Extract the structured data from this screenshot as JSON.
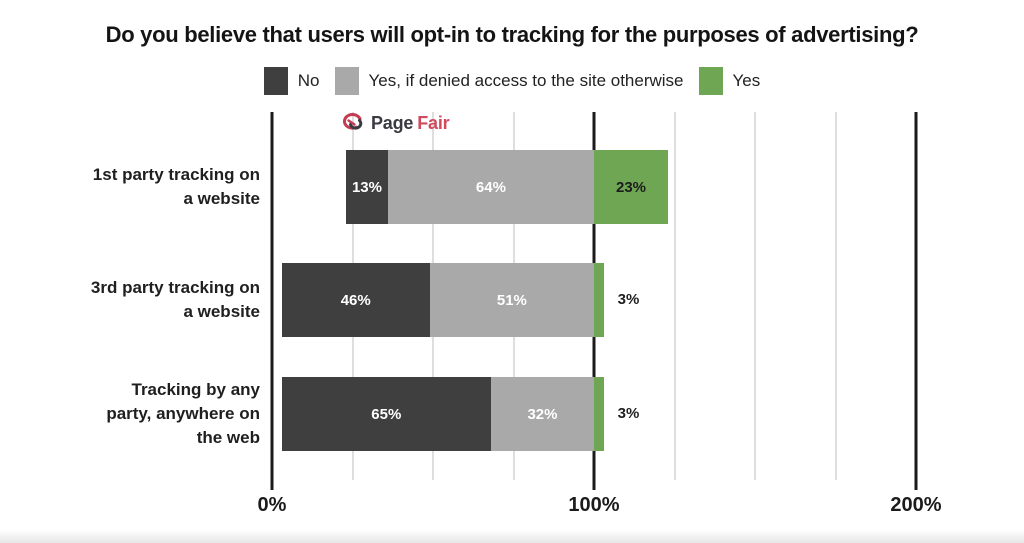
{
  "watermark": {
    "brand_dark": "Page",
    "brand_red": "Fair",
    "color_dark": "#3a3a42",
    "color_red": "#d04a5e"
  },
  "colors": {
    "grid_minor": "#dedede",
    "grid_major": "#1b1b1b",
    "text": "#1f1f1f",
    "background": "#ffffff"
  },
  "chart_data": {
    "type": "bar",
    "orientation": "horizontal",
    "variant": "diverging-stacked",
    "title": "Do you believe that users will opt-in to tracking for the purposes of advertising?",
    "categories": [
      "1st party tracking on\na website",
      "3rd party tracking on\na website",
      "Tracking by any\nparty, anywhere on\nthe web"
    ],
    "series": [
      {
        "name": "No",
        "color": "#3f3f3f",
        "label_color": "#ffffff",
        "values": [
          13,
          46,
          65
        ]
      },
      {
        "name": "Yes, if denied access to the site otherwise",
        "color": "#a9a9a9",
        "label_color": "#ffffff",
        "values": [
          64,
          51,
          32
        ]
      },
      {
        "name": "Yes",
        "color": "#6fa654",
        "label_color": "#1d1d1d",
        "values": [
          23,
          3,
          3
        ]
      }
    ],
    "pivot_percent": 100,
    "value_suffix": "%",
    "xlim": [
      0,
      200
    ],
    "x_ticks_minor": [
      25,
      50,
      75,
      125,
      150,
      175
    ],
    "x_ticks_major": [
      0,
      100,
      200
    ],
    "x_tick_labels": [
      "0%",
      "100%",
      "200%"
    ],
    "legend_position": "top",
    "grid": true,
    "outside_label_threshold": 8
  }
}
